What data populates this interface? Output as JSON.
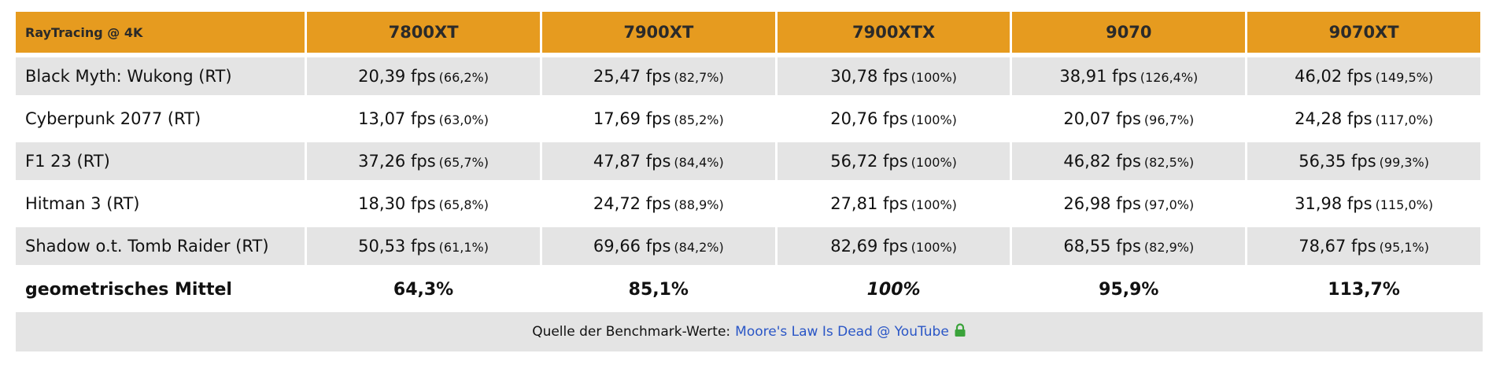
{
  "table": {
    "corner_label": "RayTracing @ 4K",
    "columns": [
      "7800XT",
      "7900XT",
      "7900XTX",
      "9070",
      "9070XT"
    ],
    "rows": [
      {
        "game": "Black Myth: Wukong (RT)",
        "cells": [
          {
            "fps": "20,39 fps",
            "pct": "(66,2%)"
          },
          {
            "fps": "25,47 fps",
            "pct": "(82,7%)"
          },
          {
            "fps": "30,78 fps",
            "pct": "(100%)"
          },
          {
            "fps": "38,91 fps",
            "pct": "(126,4%)"
          },
          {
            "fps": "46,02 fps",
            "pct": "(149,5%)"
          }
        ]
      },
      {
        "game": "Cyberpunk 2077 (RT)",
        "cells": [
          {
            "fps": "13,07 fps",
            "pct": "(63,0%)"
          },
          {
            "fps": "17,69 fps",
            "pct": "(85,2%)"
          },
          {
            "fps": "20,76 fps",
            "pct": "(100%)"
          },
          {
            "fps": "20,07 fps",
            "pct": "(96,7%)"
          },
          {
            "fps": "24,28 fps",
            "pct": "(117,0%)"
          }
        ]
      },
      {
        "game": "F1 23 (RT)",
        "cells": [
          {
            "fps": "37,26 fps",
            "pct": "(65,7%)"
          },
          {
            "fps": "47,87 fps",
            "pct": "(84,4%)"
          },
          {
            "fps": "56,72 fps",
            "pct": "(100%)"
          },
          {
            "fps": "46,82 fps",
            "pct": "(82,5%)"
          },
          {
            "fps": "56,35 fps",
            "pct": "(99,3%)"
          }
        ]
      },
      {
        "game": "Hitman 3 (RT)",
        "cells": [
          {
            "fps": "18,30 fps",
            "pct": "(65,8%)"
          },
          {
            "fps": "24,72 fps",
            "pct": "(88,9%)"
          },
          {
            "fps": "27,81 fps",
            "pct": "(100%)"
          },
          {
            "fps": "26,98 fps",
            "pct": "(97,0%)"
          },
          {
            "fps": "31,98 fps",
            "pct": "(115,0%)"
          }
        ]
      },
      {
        "game": "Shadow o.t. Tomb Raider (RT)",
        "cells": [
          {
            "fps": "50,53 fps",
            "pct": "(61,1%)"
          },
          {
            "fps": "69,66 fps",
            "pct": "(84,2%)"
          },
          {
            "fps": "82,69 fps",
            "pct": "(100%)"
          },
          {
            "fps": "68,55 fps",
            "pct": "(82,9%)"
          },
          {
            "fps": "78,67 fps",
            "pct": "(95,1%)"
          }
        ]
      }
    ],
    "mean": {
      "label": "geometrisches Mittel",
      "values": [
        "64,3%",
        "85,1%",
        "100%",
        "95,9%",
        "113,7%"
      ]
    }
  },
  "source": {
    "prefix": "Quelle der Benchmark-Werte:",
    "link_text": "Moore's Law Is Dead @ YouTube",
    "icon": "lock-icon"
  },
  "colors": {
    "header_bg": "#e69b1f",
    "row_alt_bg": "#e4e4e4",
    "link": "#2a56c6",
    "lock": "#3aa33a"
  }
}
